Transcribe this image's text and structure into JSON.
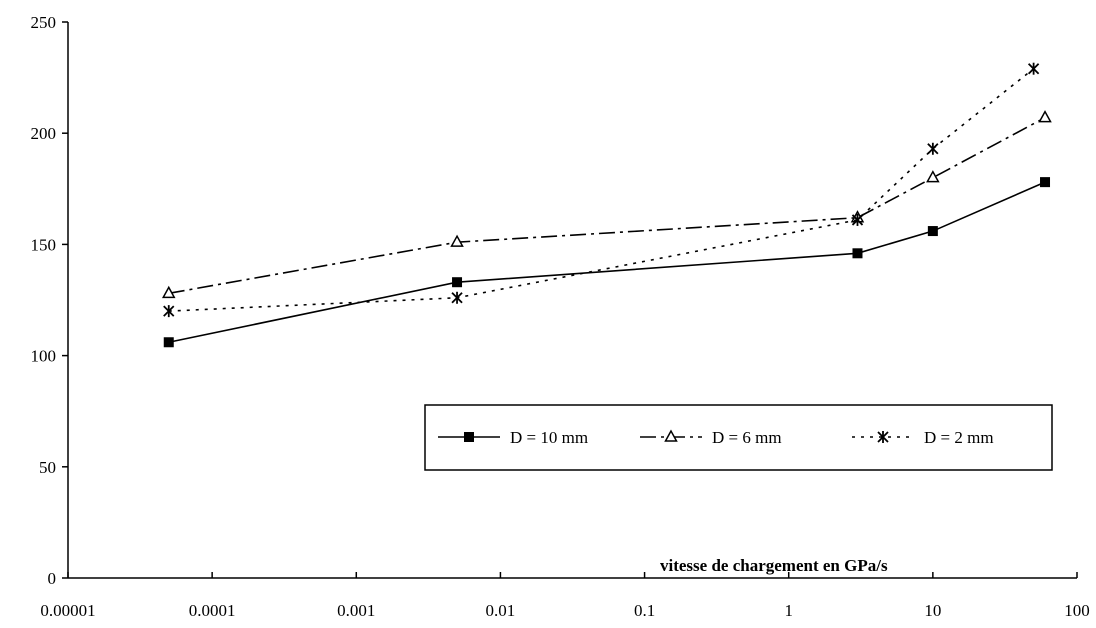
{
  "chart_data": {
    "type": "line",
    "title": "",
    "xlabel": "vitesse de chargement en GPa/s",
    "ylabel": "",
    "x_scale": "log",
    "xlim": [
      1e-05,
      100
    ],
    "ylim": [
      0,
      250
    ],
    "x_ticks": [
      "0.00001",
      "0.0001",
      "0.001",
      "0.01",
      "0.1",
      "1",
      "10",
      "100"
    ],
    "y_ticks": [
      "0",
      "50",
      "100",
      "150",
      "200",
      "250"
    ],
    "grid": false,
    "legend_position": "bottom-right",
    "series": [
      {
        "name": "D = 10 mm",
        "line_style": "solid",
        "marker": "square",
        "x": [
          5e-05,
          0.005,
          3,
          10,
          60
        ],
        "y": [
          106,
          133,
          146,
          156,
          178
        ]
      },
      {
        "name": "D = 6 mm",
        "line_style": "dash-dot",
        "marker": "triangle",
        "x": [
          5e-05,
          0.005,
          3,
          10,
          60
        ],
        "y": [
          128,
          151,
          162,
          180,
          207
        ]
      },
      {
        "name": "D = 2 mm",
        "line_style": "dotted",
        "marker": "asterisk",
        "x": [
          5e-05,
          0.005,
          3,
          10,
          50
        ],
        "y": [
          120,
          126,
          161,
          193,
          229
        ]
      }
    ]
  }
}
